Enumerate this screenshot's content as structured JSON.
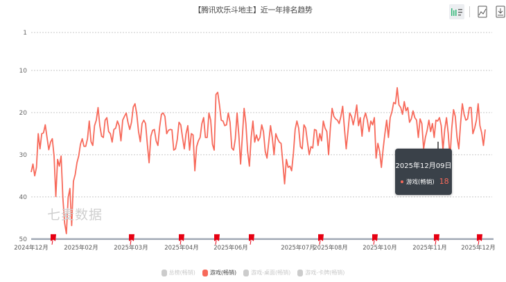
{
  "title": "【腾讯欢乐斗地主】近一年排名趋势",
  "toolbar": {
    "chart_toggle": "bar-list-toggle-icon",
    "save_image": "image-icon",
    "download": "download-icon"
  },
  "watermark": "七麦数据",
  "legend": [
    {
      "label": "总榜(畅销)",
      "active": false
    },
    {
      "label": "游戏(畅销)",
      "active": true
    },
    {
      "label": "游戏-桌面(畅销)",
      "active": false
    },
    {
      "label": "游戏-卡牌(畅销)",
      "active": false
    }
  ],
  "tooltip": {
    "date": "2025年12月09日",
    "series": "游戏(畅销)",
    "value": "18"
  },
  "colors": {
    "series": "#f7695a",
    "marker": "#e60012",
    "axis": "#a0a8b4",
    "tooltip_bg": "#3a4149"
  },
  "chart_data": {
    "type": "line",
    "title": "【腾讯欢乐斗地主】近一年排名趋势",
    "y_inverted": true,
    "ylim": [
      1,
      50
    ],
    "y_ticks": [
      "1",
      "10",
      "20",
      "30",
      "40",
      "50"
    ],
    "x_tick_labels": [
      "2024年12月",
      "2025年02月",
      "2025年03月",
      "2025年04月",
      "2025年06月",
      "2025年07月",
      "2025年08月",
      "2025年10月",
      "2025年11月",
      "2025年12月"
    ],
    "grid": true,
    "legend_placement": "bottom",
    "series": [
      {
        "name": "游戏(畅销)",
        "values": [
          34.1,
          32.2,
          35,
          33,
          25,
          28.6,
          25,
          24.8,
          22.9,
          25.9,
          28.8,
          27,
          26.2,
          30.3,
          39.9,
          31.1,
          32.7,
          30.3,
          40.2,
          46.2,
          48.7,
          40.2,
          38,
          46.8,
          36.3,
          34.7,
          31.9,
          30.3,
          27.5,
          26.2,
          28,
          28,
          26.2,
          22,
          26.9,
          27.8,
          23.1,
          21.8,
          18.8,
          23.1,
          25.6,
          25.9,
          21.8,
          21.2,
          24.5,
          25,
          27,
          24,
          23.7,
          22,
          23.1,
          26.7,
          21.8,
          20.9,
          20.1,
          22.3,
          24,
          22.3,
          18.7,
          17.9,
          20.4,
          24.5,
          26.9,
          22.6,
          21.8,
          22.6,
          27.5,
          31.9,
          25.6,
          24.2,
          24,
          26.7,
          27.8,
          23.4,
          20.4,
          20.1,
          20.9,
          25,
          24.2,
          24,
          24.1,
          28.9,
          28.6,
          26.4,
          22.3,
          22.9,
          25.9,
          28.6,
          25,
          23.1,
          28.9,
          25,
          25.3,
          33.8,
          28.1,
          26.7,
          25.9,
          22.6,
          21.2,
          25.9,
          25.9,
          20.1,
          21.8,
          27.5,
          28.9,
          15.7,
          15.2,
          18.2,
          21.8,
          22,
          23.1,
          22.9,
          20.1,
          22.3,
          28.4,
          28.9,
          26.2,
          20.1,
          25.3,
          32.2,
          25.6,
          19,
          22.6,
          29.2,
          32.7,
          25.9,
          22,
          27,
          25.3,
          26.7,
          25.9,
          22.9,
          24.5,
          29.2,
          30.8,
          27,
          23.1,
          25.9,
          30,
          25,
          26.2,
          27,
          27.3,
          31.9,
          36.9,
          31.1,
          33,
          32.7,
          33.8,
          29.7,
          24,
          22,
          23.7,
          28.1,
          28.6,
          22.9,
          23.7,
          27,
          30,
          28.1,
          28.4,
          24,
          24.2,
          27.8,
          25,
          26.7,
          22,
          23.7,
          24.5,
          30,
          23.7,
          19,
          20.9,
          21.5,
          21.8,
          22.6,
          20.9,
          18.5,
          23.7,
          28.6,
          24.5,
          20.1,
          20.9,
          22.9,
          20.9,
          18.2,
          23.1,
          21.2,
          25.6,
          21.5,
          20.1,
          21.8,
          24.5,
          22,
          22.9,
          21.2,
          30.8,
          27.3,
          29.2,
          33,
          28.6,
          25,
          21.8,
          25.9,
          21.2,
          19.8,
          17.6,
          17.9,
          14.1,
          18.2,
          18.8,
          20.4,
          17.4,
          19.6,
          18.8,
          22.3,
          21.5,
          19.6,
          21.2,
          21.8,
          25.9,
          21.5,
          22.6,
          28.6,
          25.9,
          24.2,
          21.8,
          24.5,
          22.6,
          25.9,
          21.8,
          22,
          21.2,
          23.1,
          28.9,
          24,
          21.2,
          25,
          30.8,
          23.7,
          19.3,
          20.9,
          25.9,
          28.6,
          22.6,
          17.9,
          20.4,
          21.8,
          21.5,
          18.8,
          18.8,
          25,
          23.7,
          21.8,
          17.9,
          23.1,
          24.8,
          27.8,
          24
        ]
      }
    ],
    "event_markers_count": 9
  }
}
